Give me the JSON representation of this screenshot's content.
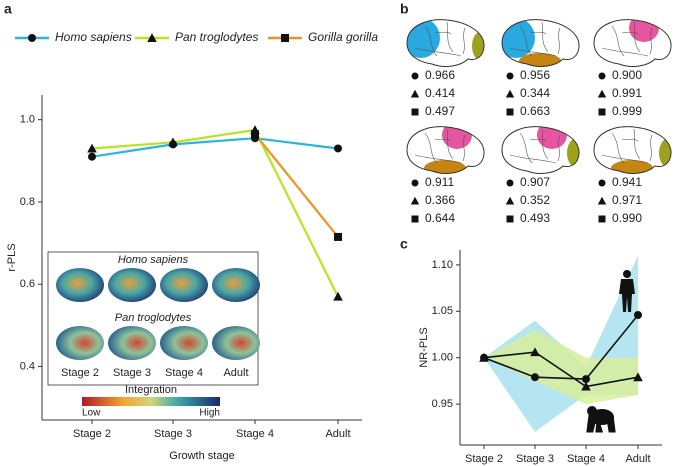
{
  "chart_data": [
    {
      "type": "line",
      "panel_label": "a",
      "ylabel": "r-PLS",
      "xlabel": "Growth stage",
      "categories": [
        "Stage 2",
        "Stage 3",
        "Stage 4",
        "Adult"
      ],
      "series": [
        {
          "name": "Homo sapiens",
          "color": "#29b6d8",
          "marker": "circle",
          "values": [
            0.91,
            0.94,
            0.955,
            0.93
          ]
        },
        {
          "name": "Pan troglodytes",
          "color": "#b7e41f",
          "marker": "triangle",
          "values": [
            0.93,
            0.945,
            0.975,
            0.57
          ]
        },
        {
          "name": "Gorilla gorilla",
          "color": "#f3921e",
          "marker": "square",
          "values": [
            null,
            null,
            0.965,
            0.715
          ]
        }
      ],
      "ylim": [
        0.27,
        1.06
      ],
      "yticks": [
        0.4,
        0.6,
        0.8,
        {
          "value": 1.0,
          "label": "1.0"
        }
      ],
      "inset": {
        "rows": [
          "Homo sapiens",
          "Pan troglodytes"
        ],
        "stages": [
          "Stage 2",
          "Stage 3",
          "Stage 4",
          "Adult"
        ],
        "colorbar": {
          "title": "Integration",
          "low": "Low",
          "high": "High"
        }
      }
    },
    {
      "type": "line",
      "panel_label": "c",
      "ylabel": "NR-PLS",
      "categories": [
        "Stage 2",
        "Stage 3",
        "Stage 4",
        "Adult"
      ],
      "bands": [
        {
          "color": "#a9e1f0",
          "upper": [
            1.0,
            1.04,
            0.99,
            1.11
          ],
          "lower": [
            1.0,
            0.92,
            0.96,
            0.96
          ]
        },
        {
          "color": "#d6ee9c",
          "upper": [
            1.0,
            1.03,
            1.0,
            1.0
          ],
          "lower": [
            1.0,
            0.975,
            0.95,
            0.96
          ]
        }
      ],
      "series": [
        {
          "marker": "circle",
          "color": "#111111",
          "values": [
            1.0,
            0.979,
            0.977,
            1.046
          ]
        },
        {
          "marker": "triangle",
          "color": "#111111",
          "values": [
            1.0,
            1.006,
            0.969,
            0.979
          ]
        }
      ],
      "ylim": [
        0.906,
        1.116
      ],
      "yticks": [
        0.95,
        {
          "value": 1.0,
          "label": "1.00"
        },
        1.05,
        {
          "value": 1.1,
          "label": "1.10"
        }
      ]
    }
  ],
  "brain_panel": {
    "label": "b",
    "items": [
      {
        "values": [
          0.966,
          0.414,
          0.497
        ]
      },
      {
        "values": [
          0.956,
          0.344,
          0.663
        ]
      },
      {
        "values": [
          {
            "value": 0.9,
            "label": "0.900"
          },
          0.991,
          0.999
        ]
      },
      {
        "values": [
          0.911,
          0.366,
          0.644
        ]
      },
      {
        "values": [
          0.907,
          0.352,
          0.493
        ]
      },
      {
        "values": [
          0.941,
          0.971,
          {
            "value": 0.99,
            "label": "0.990"
          }
        ]
      }
    ]
  }
}
